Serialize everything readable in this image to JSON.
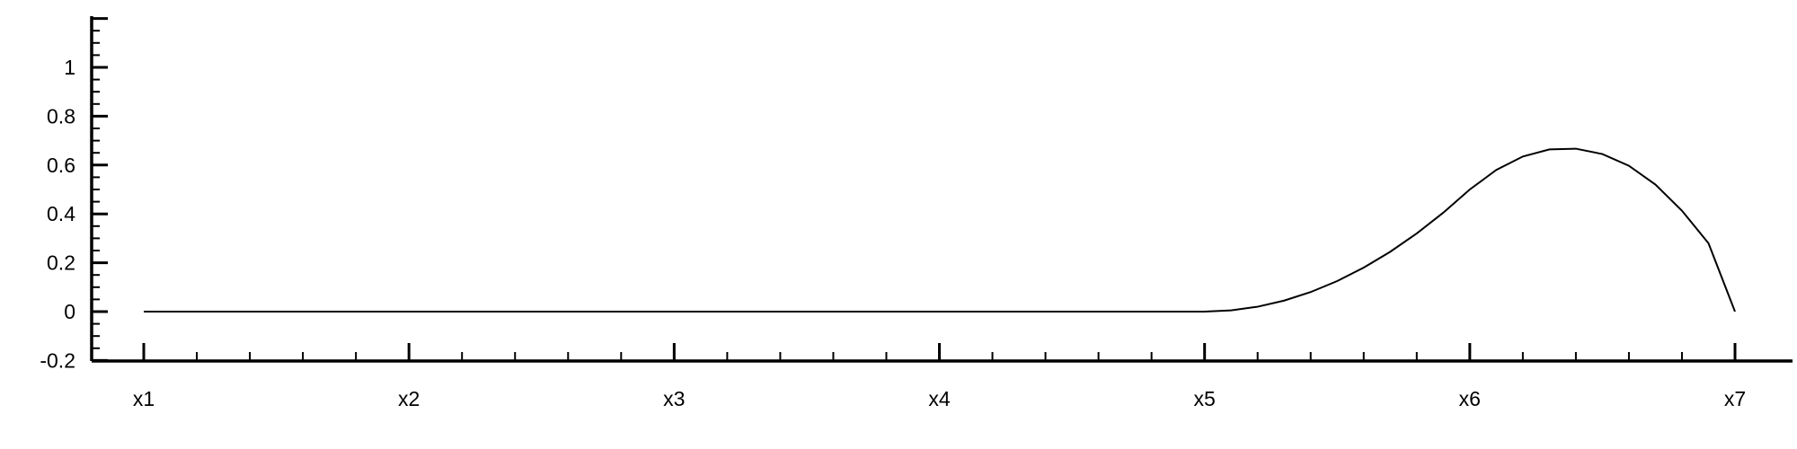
{
  "chart_data": {
    "type": "line",
    "title": "",
    "xlabel": "",
    "ylabel": "",
    "x_tick_labels": [
      "x1",
      "x2",
      "x3",
      "x4",
      "x5",
      "x6",
      "x7"
    ],
    "y_tick_labels": [
      "-0.2",
      "0",
      "0.2",
      "0.4",
      "0.6",
      "0.8",
      "1"
    ],
    "xlim": [
      1,
      7.2
    ],
    "ylim": [
      -0.2,
      1.2
    ],
    "grid": false,
    "legend": "none",
    "series": [
      {
        "color": "#000000",
        "x": [
          1,
          2,
          3,
          4,
          5,
          5.1,
          5.2,
          5.3,
          5.4,
          5.5,
          5.6,
          5.7,
          5.8,
          5.9,
          6,
          6.1,
          6.2,
          6.3,
          6.4,
          6.5,
          6.6,
          6.7,
          6.8,
          6.9,
          7
        ],
        "y": [
          0,
          0,
          0,
          0,
          0,
          0.005,
          0.02,
          0.045,
          0.08,
          0.125,
          0.18,
          0.245,
          0.32,
          0.405,
          0.5,
          0.58,
          0.635,
          0.664,
          0.667,
          0.645,
          0.597,
          0.52,
          0.413,
          0.28,
          0
        ]
      }
    ]
  }
}
